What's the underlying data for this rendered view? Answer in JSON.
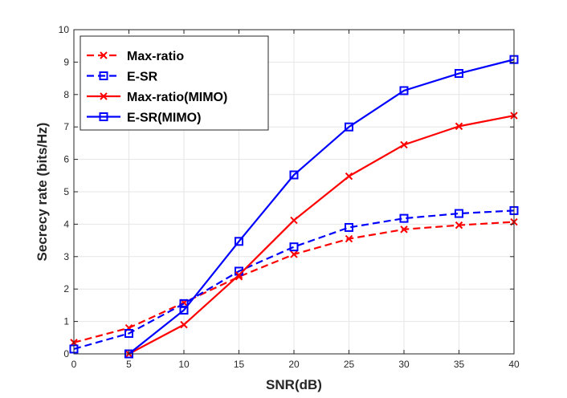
{
  "chart_data": {
    "type": "line",
    "title": "",
    "xlabel": "SNR(dB)",
    "ylabel": "Secrecy rate (bits/Hz)",
    "xlim": [
      0,
      40
    ],
    "ylim": [
      0,
      10
    ],
    "x_ticks": [
      0,
      5,
      10,
      15,
      20,
      25,
      30,
      35,
      40
    ],
    "y_ticks": [
      0,
      1,
      2,
      3,
      4,
      5,
      6,
      7,
      8,
      9,
      10
    ],
    "grid": true,
    "legend_position": "top-left",
    "series": [
      {
        "name": "Max-ratio",
        "color": "#ff0000",
        "line_style": "dashed",
        "marker": "x",
        "x": [
          0,
          5,
          10,
          15,
          20,
          25,
          30,
          35,
          40
        ],
        "y": [
          0.35,
          0.8,
          1.58,
          2.38,
          3.07,
          3.55,
          3.84,
          3.97,
          4.07
        ]
      },
      {
        "name": "E-SR",
        "color": "#0000ff",
        "line_style": "dashed",
        "marker": "square",
        "x": [
          0,
          5,
          10,
          15,
          20,
          25,
          30,
          35,
          40
        ],
        "y": [
          0.15,
          0.63,
          1.55,
          2.55,
          3.3,
          3.9,
          4.18,
          4.33,
          4.42
        ]
      },
      {
        "name": "Max-ratio(MIMO)",
        "color": "#ff0000",
        "line_style": "solid",
        "marker": "x",
        "x": [
          5,
          10,
          15,
          20,
          25,
          30,
          35,
          40
        ],
        "y": [
          0.0,
          0.9,
          2.43,
          4.12,
          5.48,
          6.45,
          7.02,
          7.35
        ]
      },
      {
        "name": "E-SR(MIMO)",
        "color": "#0000ff",
        "line_style": "solid",
        "marker": "square",
        "x": [
          5,
          10,
          15,
          20,
          25,
          30,
          35,
          40
        ],
        "y": [
          0.0,
          1.35,
          3.47,
          5.52,
          7.0,
          8.12,
          8.65,
          9.08
        ]
      }
    ]
  }
}
